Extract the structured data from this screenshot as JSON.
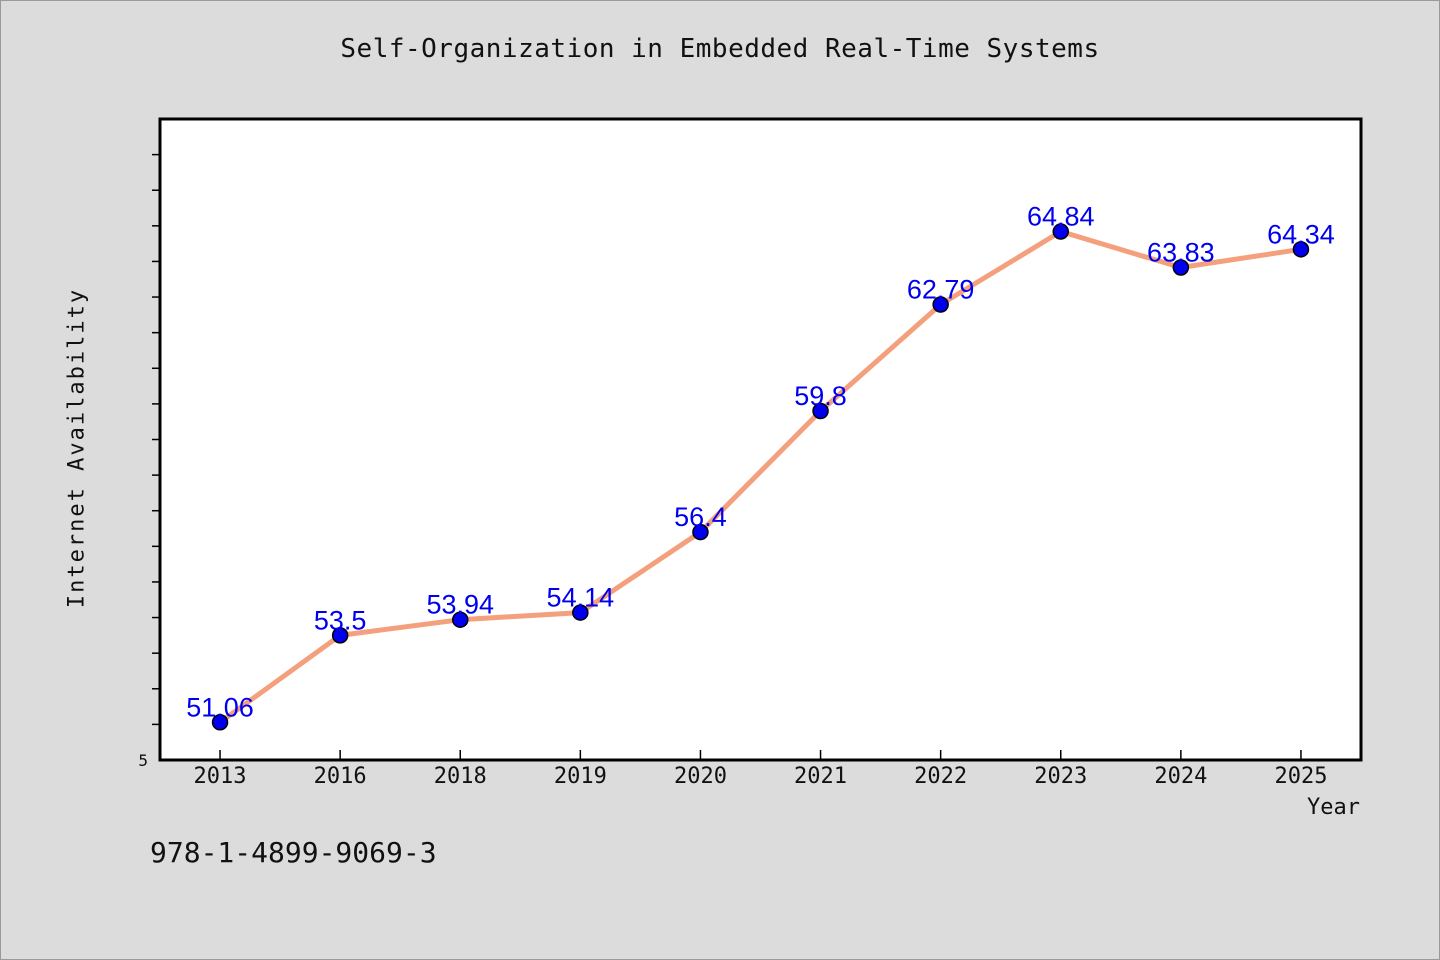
{
  "chart_data": {
    "type": "line",
    "title": "Self-Organization in Embedded Real-Time Systems",
    "xlabel": "Year",
    "ylabel": "Internet Availability",
    "categories": [
      "2013",
      "2016",
      "2018",
      "2019",
      "2020",
      "2021",
      "2022",
      "2023",
      "2024",
      "2025"
    ],
    "series": [
      {
        "values": [
          51.06,
          53.5,
          53.94,
          54.14,
          56.4,
          59.8,
          62.79,
          64.84,
          63.83,
          64.34
        ],
        "labels": [
          "51.06",
          "53.5",
          "53.94",
          "54.14",
          "56.4",
          "59.8",
          "62.79",
          "64.84",
          "63.83",
          "64.34"
        ],
        "line_color": "#f4a07c",
        "marker_color": "#0000ee",
        "label_color": "#0000ee"
      }
    ],
    "ylim": [
      50,
      68
    ],
    "y_tick_labels": [
      "5"
    ],
    "grid": false,
    "legend": "none"
  },
  "footer": {
    "isbn": "978-1-4899-9069-3"
  }
}
